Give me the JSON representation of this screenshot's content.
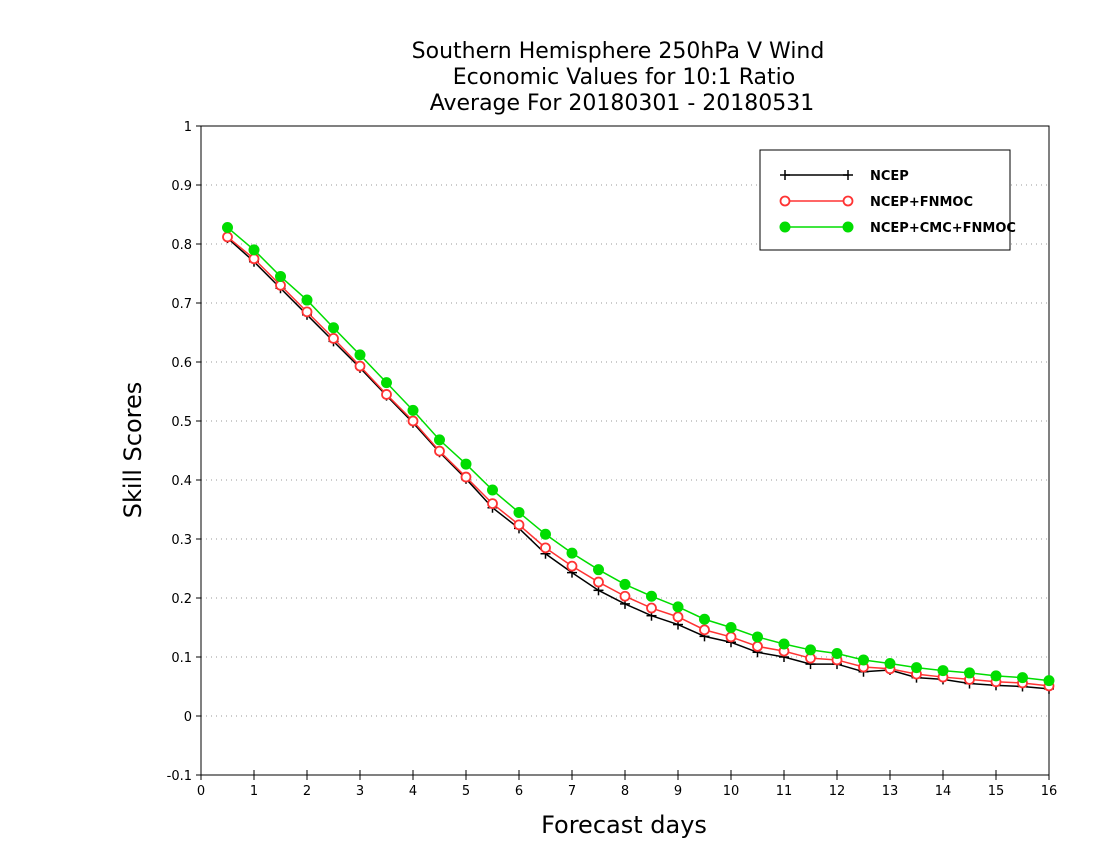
{
  "chart_data": {
    "type": "line",
    "title": [
      "Southern Hemisphere 250hPa V Wind",
      "Economic Values for 10:1 Ratio",
      "Average For 20180301 - 20180531"
    ],
    "xlabel": "Forecast days",
    "ylabel": "Skill Scores",
    "xlim": [
      0,
      16
    ],
    "ylim": [
      -0.1,
      1
    ],
    "xticks": [
      0,
      1,
      2,
      3,
      4,
      5,
      6,
      7,
      8,
      9,
      10,
      11,
      12,
      13,
      14,
      15,
      16
    ],
    "yticks": [
      -0.1,
      0,
      0.1,
      0.2,
      0.3,
      0.4,
      0.5,
      0.6,
      0.7,
      0.8,
      0.9,
      1
    ],
    "ytick_labels": [
      "-0.1",
      "0",
      "0.1",
      "0.2",
      "0.3",
      "0.4",
      "0.5",
      "0.6",
      "0.7",
      "0.8",
      "0.9",
      "1"
    ],
    "grid": "horizontal dotted",
    "legend_position": "top-right",
    "x": [
      0.5,
      1,
      1.5,
      2,
      2.5,
      3,
      3.5,
      4,
      4.5,
      5,
      5.5,
      6,
      6.5,
      7,
      7.5,
      8,
      8.5,
      9,
      9.5,
      10,
      10.5,
      11,
      11.5,
      12,
      12.5,
      13,
      13.5,
      14,
      14.5,
      15,
      15.5,
      16
    ],
    "series": [
      {
        "name": "NCEP",
        "color": "#000000",
        "marker": "plus",
        "values": [
          0.81,
          0.77,
          0.725,
          0.68,
          0.635,
          0.59,
          0.543,
          0.497,
          0.447,
          0.402,
          0.353,
          0.318,
          0.275,
          0.243,
          0.213,
          0.19,
          0.17,
          0.155,
          0.135,
          0.125,
          0.108,
          0.1,
          0.088,
          0.088,
          0.075,
          0.078,
          0.065,
          0.062,
          0.055,
          0.052,
          0.05,
          0.046
        ]
      },
      {
        "name": "NCEP+FNMOC",
        "color": "#ff3333",
        "marker": "open-circle",
        "values": [
          0.812,
          0.775,
          0.73,
          0.685,
          0.64,
          0.593,
          0.545,
          0.5,
          0.449,
          0.405,
          0.36,
          0.324,
          0.285,
          0.254,
          0.227,
          0.203,
          0.183,
          0.168,
          0.146,
          0.134,
          0.118,
          0.11,
          0.098,
          0.095,
          0.083,
          0.08,
          0.071,
          0.066,
          0.062,
          0.058,
          0.056,
          0.051
        ]
      },
      {
        "name": "NCEP+CMC+FNMOC",
        "color": "#00dd00",
        "marker": "filled-circle",
        "values": [
          0.828,
          0.79,
          0.745,
          0.705,
          0.658,
          0.612,
          0.565,
          0.518,
          0.468,
          0.427,
          0.383,
          0.345,
          0.308,
          0.276,
          0.248,
          0.223,
          0.203,
          0.185,
          0.164,
          0.15,
          0.134,
          0.122,
          0.112,
          0.106,
          0.095,
          0.089,
          0.082,
          0.077,
          0.073,
          0.068,
          0.065,
          0.06
        ]
      }
    ]
  }
}
